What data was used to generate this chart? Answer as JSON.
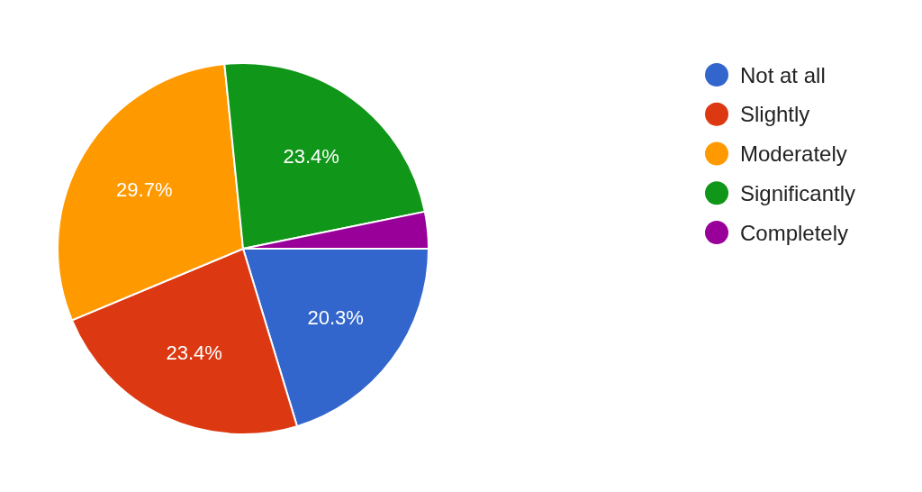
{
  "chart_data": {
    "type": "pie",
    "categories": [
      "Not at all",
      "Slightly",
      "Moderately",
      "Significantly",
      "Completely"
    ],
    "values": [
      20.3,
      23.4,
      29.7,
      23.4,
      3.2
    ],
    "colors": [
      "#3366cc",
      "#dc3912",
      "#ff9900",
      "#109618",
      "#990099"
    ],
    "value_labels": [
      "20.3%",
      "23.4%",
      "29.7%",
      "23.4%",
      null
    ],
    "legend": "right"
  }
}
